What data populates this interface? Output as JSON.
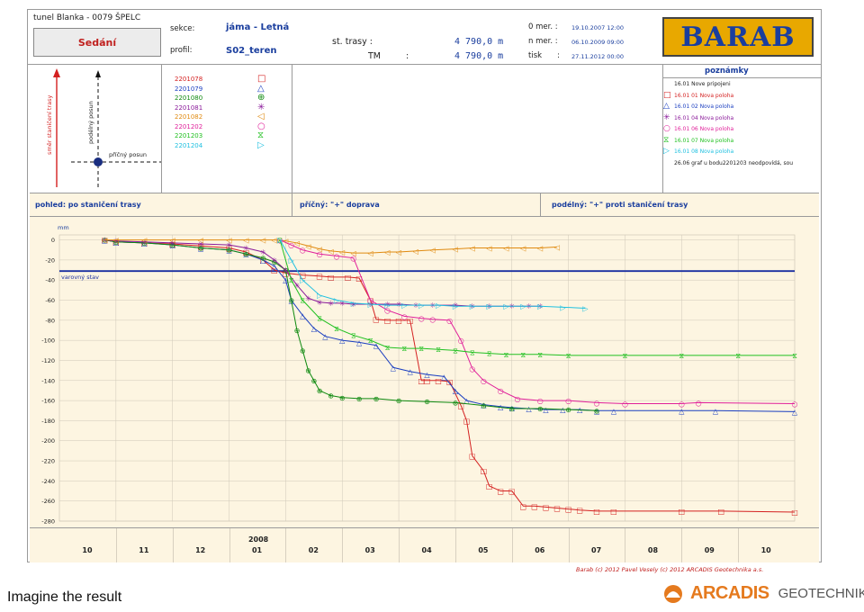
{
  "header": {
    "project": "tunel Blanka - 0079 ŠPELC",
    "type_label": "Sedání",
    "sekce_label": "sekce:",
    "sekce_value": "jáma - Letná",
    "profil_label": "profil:",
    "profil_value": "S02_teren",
    "st_trasy_label": "st. trasy :",
    "st_trasy_value": "4 790,0 m",
    "tm_label": "TM",
    "tm_colon": ":",
    "tm_value": "4 790,0 m",
    "o_mer_label": "0 mer. :",
    "o_mer_value": "19.10.2007 12:00",
    "n_mer_label": "n mer. :",
    "n_mer_value": "06.10.2009 09:00",
    "tisk_label": "tisk",
    "tisk_colon": ":",
    "tisk_value": "27.11.2012 00:00",
    "logo_text": "BARAB"
  },
  "schema": {
    "v_axis_label": "směr staničení trasy",
    "dashed_v_label": "podélný posun",
    "dashed_h_label": "příčný posun"
  },
  "legend": [
    {
      "code": "2201078",
      "color": "#d42020",
      "icon": "square-icon",
      "glyph": "□"
    },
    {
      "code": "2201079",
      "color": "#1a3ec0",
      "icon": "triangle-up-icon",
      "glyph": "△"
    },
    {
      "code": "2201080",
      "color": "#108a10",
      "icon": "circle-plus-icon",
      "glyph": "⊕"
    },
    {
      "code": "2201081",
      "color": "#8a1a9a",
      "icon": "asterisk-icon",
      "glyph": "✳"
    },
    {
      "code": "2201082",
      "color": "#e08a10",
      "icon": "triangle-left-icon",
      "glyph": "◁"
    },
    {
      "code": "2201202",
      "color": "#e0209a",
      "icon": "circle-icon",
      "glyph": "○"
    },
    {
      "code": "2201203",
      "color": "#20c020",
      "icon": "hourglass-icon",
      "glyph": "⧖"
    },
    {
      "code": "2201204",
      "color": "#20c0e0",
      "icon": "triangle-right-icon",
      "glyph": "▷"
    }
  ],
  "notes": {
    "title": "poznámky",
    "items": [
      {
        "text": "16.01 Nove pripojeni",
        "color": "#222222",
        "glyph": ""
      },
      {
        "text": "16.01 01 Nova poloha",
        "color": "#d42020",
        "glyph": "□"
      },
      {
        "text": "16.01 02 Nova poloha",
        "color": "#1a3ec0",
        "glyph": "△"
      },
      {
        "text": "16.01 04 Nova poloha",
        "color": "#8a1a9a",
        "glyph": "✳"
      },
      {
        "text": "16.01 06 Nova poloha",
        "color": "#e0209a",
        "glyph": "○"
      },
      {
        "text": "16.01 07 Nova poloha",
        "color": "#20c020",
        "glyph": "⧖"
      },
      {
        "text": "16.01 08 Nova poloha",
        "color": "#20c0e0",
        "glyph": "▷"
      },
      {
        "text": "26.06 graf u bodu2201203 neodpovídá, sou",
        "color": "#222222",
        "glyph": ""
      }
    ]
  },
  "strip": {
    "pohled": "pohled: po staničení trasy",
    "pricny": "příčný: \"+\" doprava",
    "podelny": "podélný: \"+\" proti staničení trasy"
  },
  "footer": {
    "caption": "Barab (c) 2012 Pavel Vesely (c) 2012 ARCADIS Geotechnika a.s.",
    "imagine": "Imagine the result",
    "arcadis_word": "ARCADIS",
    "arcadis_geo": "GEOTECHNIKA"
  },
  "chart_data": {
    "type": "line",
    "ylabel": "mm",
    "ylim": [
      -280,
      5
    ],
    "yticks": [
      0,
      -20,
      -40,
      -60,
      -80,
      -100,
      -120,
      -140,
      -160,
      -180,
      -200,
      -220,
      -240,
      -260,
      -280
    ],
    "xlim": [
      0,
      13
    ],
    "x_ticks": [
      {
        "x": 0.5,
        "label": "10"
      },
      {
        "x": 1.5,
        "label": "11"
      },
      {
        "x": 2.5,
        "label": "12"
      },
      {
        "x": 3.5,
        "label": "01"
      },
      {
        "x": 4.5,
        "label": "02"
      },
      {
        "x": 5.5,
        "label": "03"
      },
      {
        "x": 6.5,
        "label": "04"
      },
      {
        "x": 7.5,
        "label": "05"
      },
      {
        "x": 8.5,
        "label": "06"
      },
      {
        "x": 9.5,
        "label": "07"
      },
      {
        "x": 10.5,
        "label": "08"
      },
      {
        "x": 11.5,
        "label": "09"
      },
      {
        "x": 12.5,
        "label": "10"
      }
    ],
    "year_label": {
      "x": 3.5,
      "label": "2008"
    },
    "threshold": {
      "value": -31,
      "label": "varovný stav",
      "color": "#1a2ea0"
    },
    "grid": true,
    "series": [
      {
        "name": "2201078",
        "color": "#d42020",
        "glyph": "□",
        "x": [
          0.8,
          1.0,
          1.5,
          2.0,
          2.5,
          3.0,
          3.3,
          3.6,
          3.8,
          4.0,
          4.3,
          4.6,
          4.8,
          5.1,
          5.3,
          5.5,
          5.6,
          5.8,
          6.0,
          6.2,
          6.4,
          6.5,
          6.7,
          6.9,
          7.1,
          7.2,
          7.3,
          7.5,
          7.6,
          7.8,
          8.0,
          8.2,
          8.4,
          8.6,
          8.8,
          9.0,
          9.2,
          9.5,
          9.8,
          11.0,
          11.7,
          13.0
        ],
        "y": [
          0,
          -2,
          -3,
          -4,
          -6,
          -8,
          -12,
          -20,
          -30,
          -33,
          -35,
          -36,
          -37,
          -37,
          -38,
          -60,
          -79,
          -80,
          -80,
          -80,
          -140,
          -140,
          -140,
          -141,
          -165,
          -180,
          -215,
          -230,
          -245,
          -250,
          -250,
          -265,
          -265,
          -266,
          -267,
          -268,
          -269,
          -270,
          -270,
          -270,
          -270,
          -271
        ]
      },
      {
        "name": "2201079",
        "color": "#1a3ec0",
        "glyph": "△",
        "x": [
          0.8,
          1.0,
          1.5,
          2.0,
          2.5,
          3.0,
          3.3,
          3.6,
          3.8,
          4.0,
          4.1,
          4.3,
          4.5,
          4.7,
          5.0,
          5.3,
          5.6,
          5.9,
          6.2,
          6.5,
          6.8,
          7.0,
          7.2,
          7.5,
          7.8,
          8.0,
          8.3,
          8.6,
          8.9,
          9.2,
          9.5,
          9.8,
          11.0,
          11.6,
          13.0
        ],
        "y": [
          0,
          -2,
          -3,
          -5,
          -8,
          -10,
          -14,
          -20,
          -26,
          -40,
          -60,
          -75,
          -88,
          -96,
          -100,
          -102,
          -105,
          -127,
          -131,
          -134,
          -136,
          -150,
          -160,
          -164,
          -166,
          -167,
          -168,
          -169,
          -169,
          -169,
          -170,
          -170,
          -170,
          -170,
          -171
        ]
      },
      {
        "name": "2201080",
        "color": "#108a10",
        "glyph": "⊕",
        "x": [
          0.8,
          1.0,
          1.5,
          2.0,
          2.5,
          3.0,
          3.3,
          3.6,
          3.8,
          4.0,
          4.1,
          4.2,
          4.3,
          4.4,
          4.5,
          4.6,
          4.8,
          5.0,
          5.3,
          5.6,
          6.0,
          6.5,
          7.0,
          7.5,
          8.0,
          8.5,
          9.0,
          9.5
        ],
        "y": [
          0,
          -2,
          -3,
          -5,
          -8,
          -10,
          -14,
          -18,
          -22,
          -30,
          -60,
          -90,
          -110,
          -130,
          -140,
          -150,
          -155,
          -157,
          -158,
          -158,
          -160,
          -161,
          -162,
          -165,
          -168,
          -168,
          -169,
          -170
        ]
      },
      {
        "name": "2201081",
        "color": "#8a1a9a",
        "glyph": "✳",
        "x": [
          0.8,
          1.0,
          1.5,
          2.0,
          2.5,
          3.0,
          3.3,
          3.6,
          3.8,
          4.0,
          4.2,
          4.4,
          4.6,
          4.8,
          5.0,
          5.2,
          5.5,
          5.8,
          6.0,
          6.3,
          6.6,
          7.0,
          7.3,
          7.6,
          8.0,
          8.3,
          8.5
        ],
        "y": [
          0,
          -1,
          -2,
          -3,
          -4,
          -5,
          -8,
          -12,
          -20,
          -30,
          -45,
          -58,
          -62,
          -63,
          -63,
          -64,
          -64,
          -64,
          -64,
          -65,
          -65,
          -65,
          -66,
          -66,
          -66,
          -66,
          -66
        ]
      },
      {
        "name": "2201082",
        "color": "#e08a10",
        "glyph": "◁",
        "x": [
          0.8,
          1.0,
          1.5,
          2.0,
          2.5,
          3.0,
          3.3,
          3.6,
          3.8,
          4.0,
          4.2,
          4.4,
          4.6,
          4.8,
          5.0,
          5.2,
          5.5,
          5.8,
          6.0,
          6.3,
          6.6,
          7.0,
          7.3,
          7.6,
          7.9,
          8.2,
          8.5,
          8.8
        ],
        "y": [
          0,
          0,
          0,
          0,
          0,
          0,
          0,
          0,
          0,
          -1,
          -3,
          -6,
          -9,
          -11,
          -12,
          -13,
          -13,
          -12,
          -12,
          -11,
          -10,
          -9,
          -8,
          -8,
          -8,
          -8,
          -8,
          -7
        ]
      },
      {
        "name": "2201202",
        "color": "#e0209a",
        "glyph": "○",
        "x": [
          3.9,
          4.1,
          4.3,
          4.6,
          4.9,
          5.2,
          5.5,
          5.8,
          6.1,
          6.4,
          6.6,
          6.9,
          7.1,
          7.3,
          7.5,
          7.8,
          8.1,
          8.5,
          9.0,
          9.5,
          10.0,
          11.0,
          11.3,
          13.0
        ],
        "y": [
          0,
          -5,
          -10,
          -14,
          -16,
          -18,
          -60,
          -70,
          -76,
          -78,
          -79,
          -80,
          -100,
          -128,
          -140,
          -150,
          -158,
          -160,
          -160,
          -162,
          -163,
          -163,
          -162,
          -163
        ]
      },
      {
        "name": "2201203",
        "color": "#20c020",
        "glyph": "⧖",
        "x": [
          3.9,
          4.1,
          4.3,
          4.6,
          4.9,
          5.2,
          5.5,
          5.8,
          6.1,
          6.4,
          6.7,
          7.0,
          7.3,
          7.6,
          7.9,
          8.2,
          8.5,
          9.0,
          10.0,
          11.0,
          12.0,
          13.0
        ],
        "y": [
          0,
          -40,
          -60,
          -78,
          -88,
          -95,
          -100,
          -107,
          -108,
          -108,
          -109,
          -110,
          -112,
          -113,
          -114,
          -114,
          -114,
          -115,
          -115,
          -115,
          -115,
          -115
        ]
      },
      {
        "name": "2201204",
        "color": "#20c0e0",
        "glyph": "▷",
        "x": [
          3.9,
          4.1,
          4.3,
          4.6,
          4.9,
          5.2,
          5.5,
          5.8,
          6.1,
          6.4,
          6.7,
          7.0,
          7.3,
          7.6,
          7.9,
          8.2,
          8.5,
          8.9,
          9.3
        ],
        "y": [
          0,
          -20,
          -40,
          -55,
          -60,
          -63,
          -64,
          -65,
          -65,
          -65,
          -65,
          -66,
          -66,
          -66,
          -66,
          -66,
          -66,
          -67,
          -68
        ]
      }
    ]
  }
}
